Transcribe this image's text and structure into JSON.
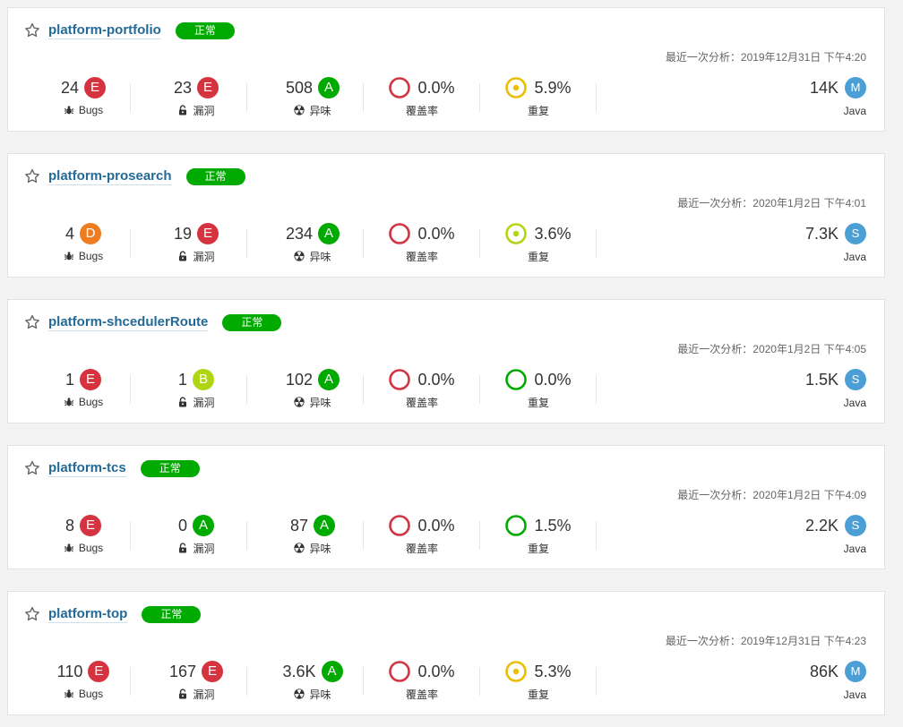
{
  "labels": {
    "bugs": "Bugs",
    "vulnerabilities": "漏洞",
    "smells": "异味",
    "coverage": "覆盖率",
    "duplications": "重复"
  },
  "status_colors": {
    "ok": "#00aa00"
  },
  "rating_colors": {
    "A": "#00aa00",
    "B": "#b0d513",
    "D": "#ed7d20",
    "E": "#d4333f"
  },
  "icons": {
    "favorite": "star-outline-icon",
    "bugs": "bug-icon",
    "vulnerabilities": "lock-icon",
    "smells": "radiation-icon",
    "coverage": "coverage-donut-icon",
    "duplications": "duplication-donut-icon"
  },
  "projects": [
    {
      "name": "platform-portfolio",
      "status": "正常",
      "analysis": "最近一次分析：2019年12月31日 下午4:20",
      "bugs": {
        "value": "24",
        "rating": "E"
      },
      "vulnerabilities": {
        "value": "23",
        "rating": "E"
      },
      "smells": {
        "value": "508",
        "rating": "A"
      },
      "coverage": {
        "value": "0.0%",
        "color": "#d4333f"
      },
      "duplications": {
        "value": "5.9%",
        "color": "#eabe06",
        "dot": true
      },
      "size": "14K",
      "size_badge": "M",
      "language": "Java"
    },
    {
      "name": "platform-prosearch",
      "status": "正常",
      "analysis": "最近一次分析：2020年1月2日 下午4:01",
      "bugs": {
        "value": "4",
        "rating": "D"
      },
      "vulnerabilities": {
        "value": "19",
        "rating": "E"
      },
      "smells": {
        "value": "234",
        "rating": "A"
      },
      "coverage": {
        "value": "0.0%",
        "color": "#d4333f"
      },
      "duplications": {
        "value": "3.6%",
        "color": "#b0d513",
        "dot": true
      },
      "size": "7.3K",
      "size_badge": "S",
      "language": "Java"
    },
    {
      "name": "platform-shcedulerRoute",
      "status": "正常",
      "analysis": "最近一次分析：2020年1月2日 下午4:05",
      "bugs": {
        "value": "1",
        "rating": "E"
      },
      "vulnerabilities": {
        "value": "1",
        "rating": "B"
      },
      "smells": {
        "value": "102",
        "rating": "A"
      },
      "coverage": {
        "value": "0.0%",
        "color": "#d4333f"
      },
      "duplications": {
        "value": "0.0%",
        "color": "#00aa00",
        "dot": false
      },
      "size": "1.5K",
      "size_badge": "S",
      "language": "Java"
    },
    {
      "name": "platform-tcs",
      "status": "正常",
      "analysis": "最近一次分析：2020年1月2日 下午4:09",
      "bugs": {
        "value": "8",
        "rating": "E"
      },
      "vulnerabilities": {
        "value": "0",
        "rating": "A"
      },
      "smells": {
        "value": "87",
        "rating": "A"
      },
      "coverage": {
        "value": "0.0%",
        "color": "#d4333f"
      },
      "duplications": {
        "value": "1.5%",
        "color": "#00aa00",
        "dot": false
      },
      "size": "2.2K",
      "size_badge": "S",
      "language": "Java"
    },
    {
      "name": "platform-top",
      "status": "正常",
      "analysis": "最近一次分析：2019年12月31日 下午4:23",
      "bugs": {
        "value": "110",
        "rating": "E"
      },
      "vulnerabilities": {
        "value": "167",
        "rating": "E"
      },
      "smells": {
        "value": "3.6K",
        "rating": "A"
      },
      "coverage": {
        "value": "0.0%",
        "color": "#d4333f"
      },
      "duplications": {
        "value": "5.3%",
        "color": "#eabe06",
        "dot": true
      },
      "size": "86K",
      "size_badge": "M",
      "language": "Java"
    }
  ]
}
